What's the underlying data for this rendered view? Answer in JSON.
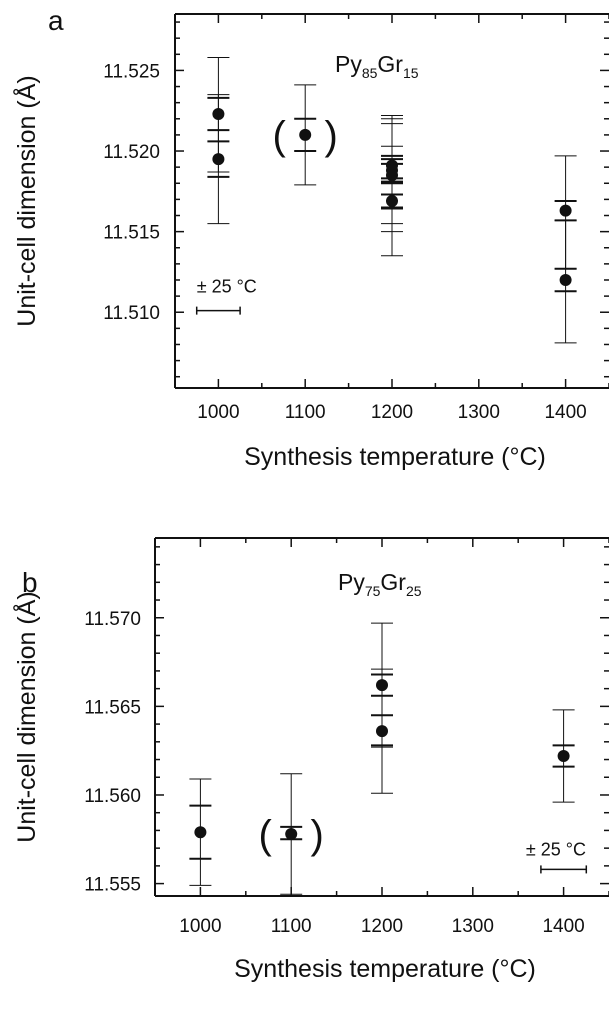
{
  "chart_data": [
    {
      "type": "scatter",
      "panel": "a",
      "composition": {
        "base1": "Py",
        "sub1": "85",
        "base2": "Gr",
        "sub2": "15"
      },
      "xlabel": "Synthesis temperature (°C)",
      "ylabel": "Unit-cell dimension (Å)",
      "xlim": [
        950,
        1450
      ],
      "ylim": [
        11.5053,
        11.5285
      ],
      "xticks": [
        1000,
        1100,
        1200,
        1300,
        1400
      ],
      "yticks": [
        11.51,
        11.515,
        11.52,
        11.525
      ],
      "ytick_labels": [
        "11.510",
        "11.515",
        "11.520",
        "11.525"
      ],
      "grid": false,
      "temperature_error_label": "± 25 °C",
      "temperature_error": 25,
      "temperature_error_bar_center": {
        "x": 1000,
        "y": 11.5101
      },
      "points": [
        {
          "x": 1000,
          "y": 11.5223,
          "ymin": 11.5187,
          "ymax": 11.5258,
          "caps_inner": [
            11.5213,
            11.5233
          ]
        },
        {
          "x": 1000,
          "y": 11.5195,
          "ymin": 11.5155,
          "ymax": 11.5235,
          "caps_inner": [
            11.5184,
            11.5206
          ]
        },
        {
          "x": 1100,
          "y": 11.521,
          "ymin": 11.5179,
          "ymax": 11.5241,
          "caps_inner": [
            11.52,
            11.522
          ],
          "parenthesized": true
        },
        {
          "x": 1200,
          "y": 11.5191,
          "ymin": 11.5164,
          "ymax": 11.5222,
          "caps_inner": [
            11.5183,
            11.5197
          ]
        },
        {
          "x": 1200,
          "y": 11.5188,
          "ymin": 11.5155,
          "ymax": 11.522,
          "caps_inner": [
            11.5181,
            11.5195
          ]
        },
        {
          "x": 1200,
          "y": 11.5185,
          "ymin": 11.515,
          "ymax": 11.5217,
          "caps_inner": [
            11.518,
            11.5192
          ]
        },
        {
          "x": 1200,
          "y": 11.5169,
          "ymin": 11.5135,
          "ymax": 11.5203,
          "caps_inner": [
            11.5165,
            11.5173
          ]
        },
        {
          "x": 1400,
          "y": 11.5163,
          "ymin": 11.5127,
          "ymax": 11.5197,
          "caps_inner": [
            11.5157,
            11.5169
          ]
        },
        {
          "x": 1400,
          "y": 11.512,
          "ymin": 11.5081,
          "ymax": 11.5157,
          "caps_inner": [
            11.5113,
            11.5127
          ]
        }
      ]
    },
    {
      "type": "scatter",
      "panel": "b",
      "composition": {
        "base1": "Py",
        "sub1": "75",
        "base2": "Gr",
        "sub2": "25"
      },
      "xlabel": "Synthesis temperature (°C)",
      "ylabel": "Unit-cell dimension (Å)",
      "xlim": [
        950,
        1450
      ],
      "ylim": [
        11.5543,
        11.5745
      ],
      "xticks": [
        1000,
        1100,
        1200,
        1300,
        1400
      ],
      "yticks": [
        11.555,
        11.56,
        11.565,
        11.57
      ],
      "ytick_labels": [
        "11.555",
        "11.560",
        "11.565",
        "11.570"
      ],
      "grid": false,
      "temperature_error_label": "± 25 °C",
      "temperature_error": 25,
      "temperature_error_bar_center": {
        "x": 1400,
        "y": 11.5558
      },
      "points": [
        {
          "x": 1000,
          "y": 11.5579,
          "ymin": 11.5549,
          "ymax": 11.5609,
          "caps_inner": [
            11.5564,
            11.5594
          ]
        },
        {
          "x": 1100,
          "y": 11.5578,
          "ymin": 11.5544,
          "ymax": 11.5612,
          "caps_inner": [
            11.5575,
            11.5582
          ],
          "parenthesized": true
        },
        {
          "x": 1200,
          "y": 11.5662,
          "ymin": 11.5627,
          "ymax": 11.5697,
          "caps_inner": [
            11.5656,
            11.5668
          ]
        },
        {
          "x": 1200,
          "y": 11.5636,
          "ymin": 11.5601,
          "ymax": 11.5671,
          "caps_inner": [
            11.5645,
            11.5628
          ]
        },
        {
          "x": 1400,
          "y": 11.5622,
          "ymin": 11.5596,
          "ymax": 11.5648,
          "caps_inner": [
            11.5616,
            11.5628
          ]
        }
      ]
    }
  ]
}
